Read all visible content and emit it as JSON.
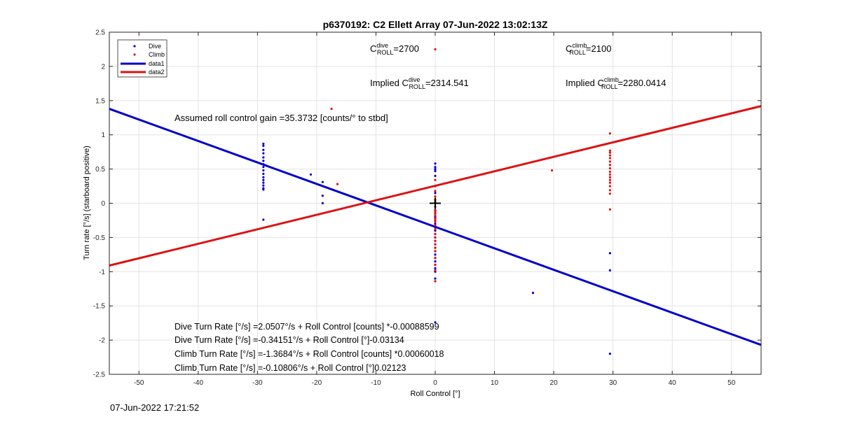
{
  "chart_data": {
    "type": "scatter",
    "title": "p6370192: C2 Ellett Array 07-Jun-2022 13:02:13Z",
    "xlabel": "Roll Control [°]",
    "ylabel": "Turn rate [°/s] (starboard positive)",
    "xlim": [
      -55,
      55
    ],
    "ylim": [
      -2.5,
      2.5
    ],
    "xticks": [
      -50,
      -40,
      -30,
      -20,
      -10,
      0,
      10,
      20,
      30,
      40,
      50
    ],
    "yticks": [
      -2.5,
      -2,
      -1.5,
      -1,
      -0.5,
      0,
      0.5,
      1,
      1.5,
      2,
      2.5
    ],
    "grid": true,
    "legend_position": "top-left",
    "colors": {
      "dive": "#0000cc",
      "climb": "#dd1111",
      "marker": "#000000"
    },
    "series": [
      {
        "name": "Dive",
        "kind": "points",
        "x": [
          -29,
          -29,
          -29,
          -29,
          -29,
          -29,
          -29,
          -29,
          -29,
          -29,
          -29,
          -29,
          -29,
          -29,
          -29,
          -29,
          -29,
          -21,
          -19,
          -19,
          -19,
          0,
          0,
          0,
          0,
          0,
          0,
          0,
          0,
          0,
          0,
          0,
          0,
          0,
          0,
          0,
          0,
          0,
          0,
          0,
          0,
          0,
          0,
          0,
          0,
          0,
          0,
          0,
          0,
          0,
          0,
          0,
          0,
          0,
          16.5,
          29.5,
          29.5,
          29.5
        ],
        "y": [
          0.87,
          0.84,
          0.78,
          0.73,
          0.67,
          0.62,
          0.57,
          0.53,
          0.48,
          0.43,
          0.38,
          0.34,
          0.3,
          0.26,
          0.22,
          0.2,
          -0.24,
          0.42,
          0.31,
          0.11,
          0.0,
          0.58,
          0.53,
          0.5,
          0.47,
          0.4,
          0.25,
          0.15,
          0.05,
          0,
          -0.05,
          -0.1,
          -0.15,
          -0.2,
          -0.25,
          -0.3,
          -0.35,
          -0.4,
          -0.45,
          -0.5,
          -0.55,
          -0.6,
          -0.65,
          -0.7,
          -0.75,
          -0.8,
          -0.85,
          -0.9,
          -0.95,
          -1.0,
          -1.1,
          -1.74,
          -0.12,
          -0.22,
          -1.31,
          -0.73,
          -0.98,
          -2.2
        ]
      },
      {
        "name": "Climb",
        "kind": "points",
        "x": [
          -17.5,
          -16.5,
          0,
          0,
          0,
          0,
          0,
          0,
          0,
          0,
          0,
          0,
          0,
          0,
          0,
          0,
          0,
          0,
          0,
          0,
          0,
          0,
          0,
          0,
          0,
          0,
          0,
          0,
          0,
          19.7,
          29.5,
          29.5,
          29.5,
          29.5,
          29.5,
          29.5,
          29.5,
          29.5,
          29.5,
          29.5,
          29.5,
          29.5,
          29.5,
          29.5,
          29.5,
          29.5,
          29.5
        ],
        "y": [
          1.38,
          0.28,
          2.25,
          0.34,
          0.25,
          0.18,
          0.1,
          0.05,
          0.02,
          -0.05,
          -0.1,
          -0.15,
          -0.18,
          -0.22,
          -0.27,
          -0.32,
          -0.38,
          -0.45,
          -0.5,
          -0.55,
          -0.6,
          -0.65,
          -0.7,
          -0.8,
          -0.9,
          -0.98,
          -1.14,
          -0.12,
          -0.25,
          0.48,
          1.02,
          0.77,
          0.74,
          0.7,
          0.66,
          0.61,
          0.56,
          0.51,
          0.46,
          0.42,
          0.38,
          0.34,
          0.3,
          0.25,
          0.19,
          0.14,
          -0.09
        ]
      },
      {
        "name": "data1",
        "kind": "line",
        "x": [
          -55,
          55
        ],
        "y": [
          1.38,
          -2.07
        ]
      },
      {
        "name": "data2",
        "kind": "line",
        "x": [
          -55,
          55
        ],
        "y": [
          -0.91,
          1.42
        ]
      }
    ],
    "center_marker": {
      "x": 0,
      "y": 0
    },
    "annotations": {
      "c_dive_prefix": "C",
      "c_dive_sup": "dive",
      "c_dive_sub": "ROLL",
      "c_dive_value": "=2700",
      "c_climb_prefix": "C",
      "c_climb_sup": "climb",
      "c_climb_sub": "ROLL",
      "c_climb_value": "=2100",
      "implied_dive_prefix": "Implied C",
      "implied_dive_sup": "dive",
      "implied_dive_sub": "ROLL",
      "implied_dive_value": "=2314.541",
      "implied_climb_prefix": "Implied C",
      "implied_climb_sup": "climb",
      "implied_climb_sub": "ROLL",
      "implied_climb_value": "=2280.0414",
      "gain": "Assumed roll control gain =35.3732 [counts/° to stbd]",
      "fit1": "Dive Turn Rate [°/s] =2.0507°/s + Roll Control [counts] *-0.00088599",
      "fit2": "Dive Turn Rate [°/s] =-0.34151°/s + Roll Control [°]-0.03134",
      "fit3": "Climb Turn Rate [°/s] =-1.3684°/s + Roll Control [counts] *0.00060018",
      "fit4": "Climb Turn Rate [°/s] =-0.10806°/s + Roll Control [°]0.02123"
    }
  },
  "footer": {
    "date": "07-Jun-2022 17:21:52"
  }
}
